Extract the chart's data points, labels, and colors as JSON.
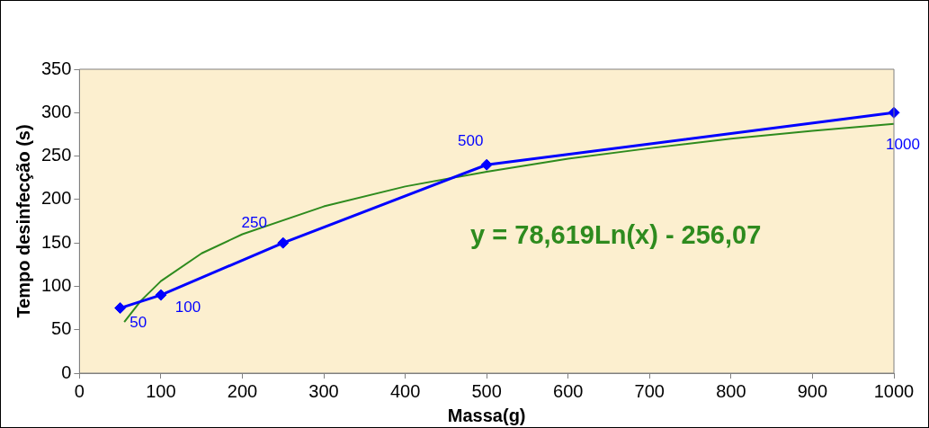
{
  "chart_data": {
    "type": "line",
    "xlabel": "Massa(g)",
    "ylabel": "Tempo desinfecção (s)",
    "xlim": [
      0,
      1000
    ],
    "xticks": [
      0,
      100,
      200,
      300,
      400,
      500,
      600,
      700,
      800,
      900,
      1000
    ],
    "ylim": [
      0,
      350
    ],
    "yticks": [
      0,
      50,
      100,
      150,
      200,
      250,
      300,
      350
    ],
    "grid": false,
    "legend": false,
    "series": [
      {
        "type": "line",
        "color": "#0000ff",
        "marker": "diamond",
        "x": [
          50,
          100,
          250,
          500,
          1000
        ],
        "values": [
          75,
          90,
          150,
          240,
          300
        ]
      },
      {
        "type": "line",
        "color": "#2e8b1e",
        "marker": "none",
        "x": [
          55,
          75,
          100,
          150,
          200,
          300,
          400,
          500,
          600,
          700,
          800,
          900,
          1000
        ],
        "values": [
          59,
          83,
          106,
          138,
          160,
          192,
          215,
          232,
          247,
          259,
          270,
          279,
          287
        ]
      }
    ],
    "annotations": [
      {
        "text": "50",
        "x": 50,
        "y": 75
      },
      {
        "text": "100",
        "x": 100,
        "y": 90
      },
      {
        "text": "250",
        "x": 250,
        "y": 150
      },
      {
        "text": "500",
        "x": 500,
        "y": 240
      },
      {
        "text": "1000",
        "x": 1000,
        "y": 300
      },
      "y = 78,619Ln(x) - 256,07"
    ]
  }
}
